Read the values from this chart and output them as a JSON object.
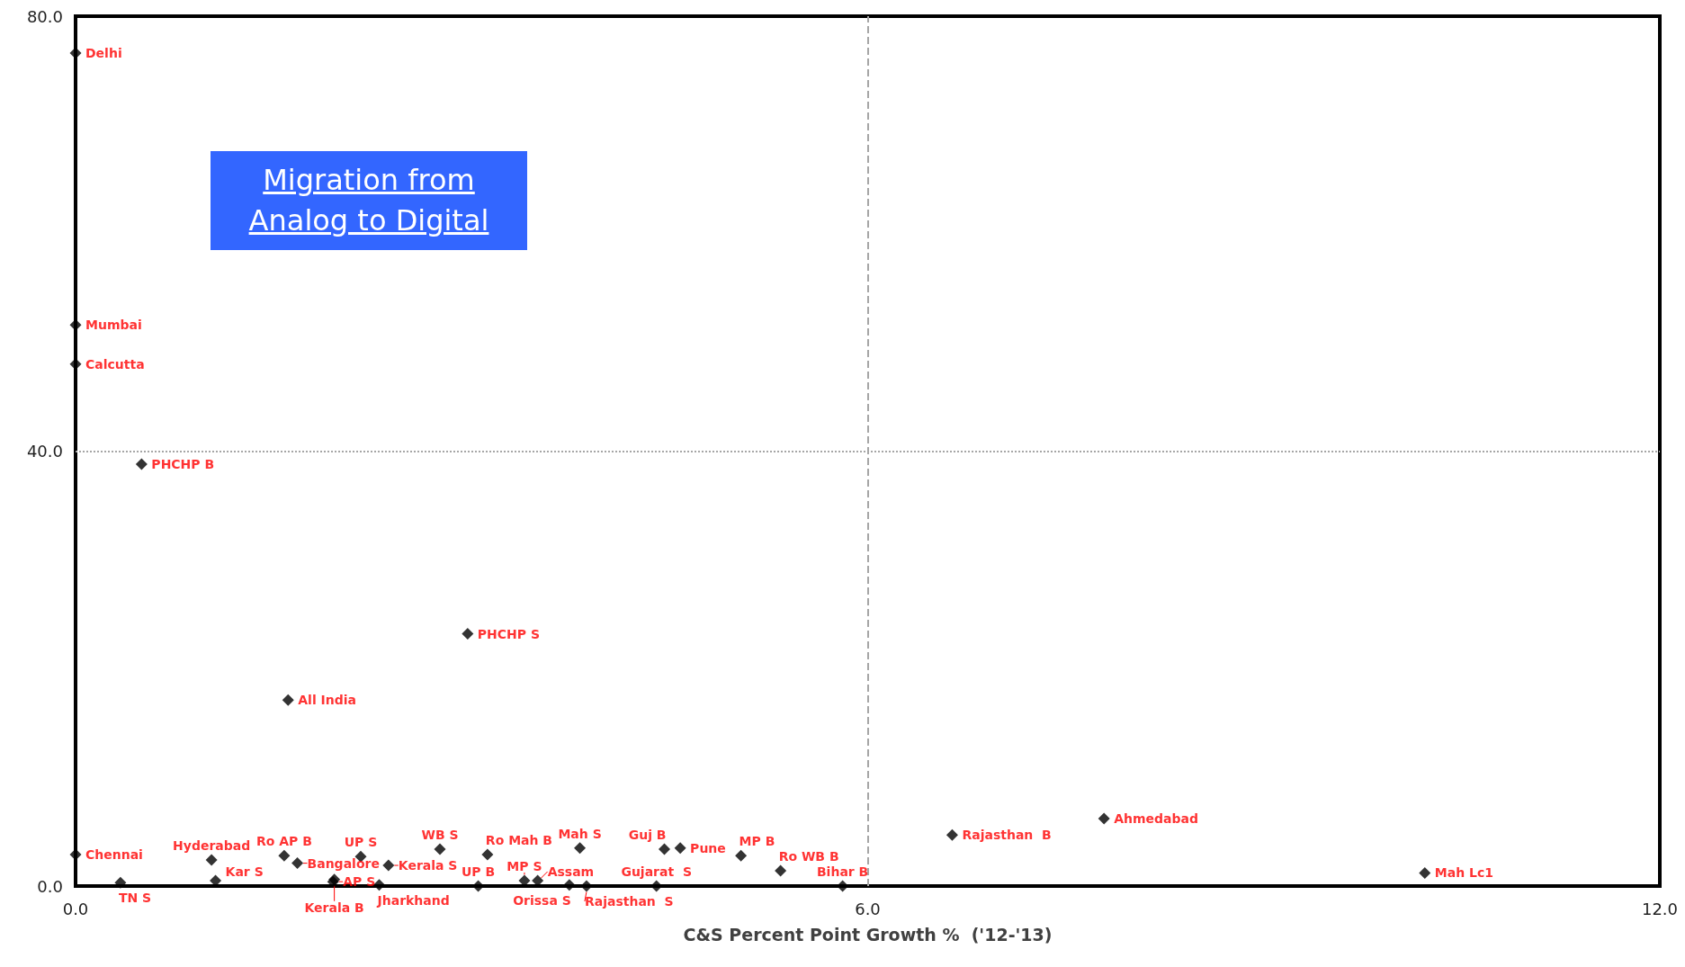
{
  "chart_data": {
    "type": "scatter",
    "xlabel": "C&S Percent Point Growth %  ('12-'13)",
    "xlim": [
      0,
      12
    ],
    "xticks": [
      {
        "value": 0,
        "label": "0.0"
      },
      {
        "value": 6,
        "label": "6.0"
      },
      {
        "value": 12,
        "label": "12.0"
      }
    ],
    "ylim": [
      0,
      80
    ],
    "yticks": [
      {
        "value": 0,
        "label": "0.0"
      },
      {
        "value": 40,
        "label": "40.0"
      },
      {
        "value": 80,
        "label": "80.0"
      }
    ],
    "grid": false,
    "legend": false,
    "marker": "diamond",
    "ref_lines": [
      {
        "axis": "x",
        "value": 6,
        "color": "#a6a6a6",
        "line_style": "dashed"
      },
      {
        "axis": "y",
        "value": 40,
        "color": "#a6a6a6",
        "line_style": "dotted"
      }
    ],
    "annotations": [
      "Migration from Analog to Digital"
    ],
    "series": [
      {
        "name": "Delhi",
        "color": "#000000",
        "x": [
          0
        ],
        "values": [
          76.6
        ]
      },
      {
        "name": "Mumbai",
        "color": "#000000",
        "x": [
          0
        ],
        "values": [
          51.6
        ]
      },
      {
        "name": "Calcutta",
        "color": "#000000",
        "x": [
          0
        ],
        "values": [
          48.0
        ]
      },
      {
        "name": "PHCHP B",
        "color": "#000000",
        "x": [
          0.5
        ],
        "values": [
          38.8
        ]
      },
      {
        "name": "PHCHP S",
        "color": "#000000",
        "x": [
          2.97
        ],
        "values": [
          23.2
        ]
      },
      {
        "name": "All India",
        "color": "#000000",
        "x": [
          1.61
        ],
        "values": [
          17.1
        ]
      },
      {
        "name": "Chennai",
        "color": "#000000",
        "x": [
          0
        ],
        "values": [
          2.9
        ]
      },
      {
        "name": "TN S",
        "color": "#000000",
        "x": [
          0.34
        ],
        "values": [
          0.3
        ]
      },
      {
        "name": "Hyderabad",
        "color": "#000000",
        "x": [
          1.03
        ],
        "values": [
          2.4
        ]
      },
      {
        "name": "Kar S",
        "color": "#000000",
        "x": [
          1.06
        ],
        "values": [
          0.5
        ]
      },
      {
        "name": "Ro AP B",
        "color": "#000000",
        "x": [
          1.58
        ],
        "values": [
          2.8
        ]
      },
      {
        "name": "Bangalore",
        "color": "#000000",
        "x": [
          1.68
        ],
        "values": [
          2.1
        ]
      },
      {
        "name": "Kerala B",
        "color": "#000000",
        "x": [
          1.96
        ],
        "values": [
          0.6
        ]
      },
      {
        "name": "AP S",
        "color": "#000000",
        "x": [
          1.95
        ],
        "values": [
          0.4
        ]
      },
      {
        "name": "UP S",
        "color": "#000000",
        "x": [
          2.16
        ],
        "values": [
          2.7
        ]
      },
      {
        "name": "Jharkhand",
        "color": "#000000",
        "x": [
          2.3
        ],
        "values": [
          0.1
        ]
      },
      {
        "name": "Kerala S",
        "color": "#000000",
        "x": [
          2.37
        ],
        "values": [
          1.9
        ]
      },
      {
        "name": "WB S",
        "color": "#000000",
        "x": [
          2.76
        ],
        "values": [
          3.4
        ]
      },
      {
        "name": "Ro Mah B",
        "color": "#000000",
        "x": [
          3.12
        ],
        "values": [
          2.9
        ]
      },
      {
        "name": "UP B",
        "color": "#000000",
        "x": [
          3.05
        ],
        "values": [
          0.0
        ]
      },
      {
        "name": "MP S",
        "color": "#000000",
        "x": [
          3.4
        ],
        "values": [
          0.5
        ]
      },
      {
        "name": "Assam",
        "color": "#000000",
        "x": [
          3.5
        ],
        "values": [
          0.5
        ]
      },
      {
        "name": "Orissa S",
        "color": "#000000",
        "x": [
          3.74
        ],
        "values": [
          0.1
        ]
      },
      {
        "name": "Rajasthan  S",
        "color": "#000000",
        "x": [
          3.87
        ],
        "values": [
          0.0
        ]
      },
      {
        "name": "Mah S",
        "color": "#000000",
        "x": [
          3.82
        ],
        "values": [
          3.5
        ]
      },
      {
        "name": "Gujarat  S",
        "color": "#000000",
        "x": [
          4.4
        ],
        "values": [
          0.0
        ]
      },
      {
        "name": "Guj B",
        "color": "#000000",
        "x": [
          4.46
        ],
        "values": [
          3.4
        ]
      },
      {
        "name": "Pune",
        "color": "#000000",
        "x": [
          4.58
        ],
        "values": [
          3.5
        ]
      },
      {
        "name": "MP B",
        "color": "#000000",
        "x": [
          5.04
        ],
        "values": [
          2.8
        ]
      },
      {
        "name": "Ro WB B",
        "color": "#000000",
        "x": [
          5.34
        ],
        "values": [
          1.4
        ]
      },
      {
        "name": "Bihar B",
        "color": "#000000",
        "x": [
          5.81
        ],
        "values": [
          0.0
        ]
      },
      {
        "name": "Rajasthan  B",
        "color": "#000000",
        "x": [
          6.64
        ],
        "values": [
          4.7
        ]
      },
      {
        "name": "Ahmedabad",
        "color": "#000000",
        "x": [
          7.79
        ],
        "values": [
          6.2
        ]
      },
      {
        "name": "Mah Lc1",
        "color": "#000000",
        "x": [
          10.22
        ],
        "values": [
          1.2
        ]
      }
    ]
  }
}
